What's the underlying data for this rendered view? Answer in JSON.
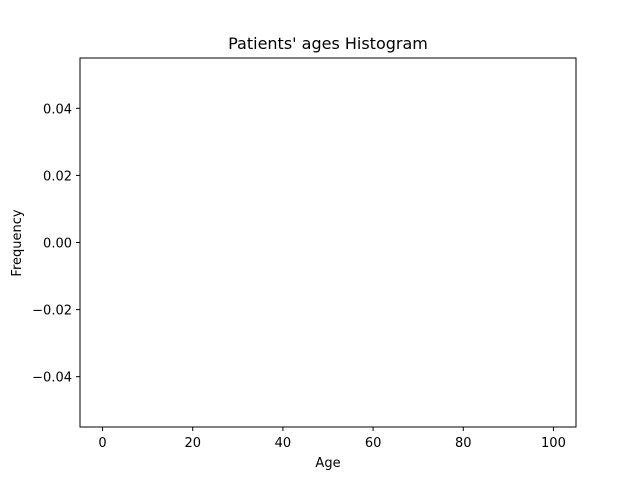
{
  "chart_data": {
    "type": "bar",
    "title": "Patients' ages Histogram",
    "xlabel": "Age",
    "ylabel": "Frequency",
    "xlim": [
      -5,
      105
    ],
    "ylim": [
      -0.055,
      0.055
    ],
    "xticks": [
      0,
      20,
      40,
      60,
      80,
      100
    ],
    "xtick_labels": [
      "0",
      "20",
      "40",
      "60",
      "80",
      "100"
    ],
    "yticks": [
      -0.04,
      -0.02,
      0.0,
      0.02,
      0.04
    ],
    "ytick_labels": [
      "−0.04",
      "−0.02",
      "0.00",
      "0.02",
      "0.04"
    ],
    "categories": [],
    "values": [],
    "grid": false,
    "legend": "none"
  }
}
